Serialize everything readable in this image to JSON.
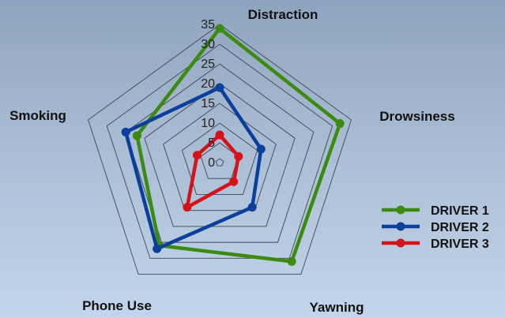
{
  "chart_data": {
    "type": "radar",
    "categories": [
      "Distraction",
      "Drowsiness",
      "Yawning",
      "Phone Use",
      "Smoking"
    ],
    "rlim": [
      0,
      35
    ],
    "ticks": [
      "0",
      "5",
      "10",
      "15",
      "20",
      "25",
      "30",
      "35"
    ],
    "tick_values": [
      0,
      5,
      10,
      15,
      20,
      25,
      30,
      35
    ],
    "grid": true,
    "legend_position": "right",
    "series": [
      {
        "name": "DRIVER 1",
        "color": "#3a8b10",
        "values": [
          34,
          32,
          31,
          26,
          22
        ]
      },
      {
        "name": "DRIVER 2",
        "color": "#0b3f9c",
        "values": [
          19,
          11,
          14,
          27,
          25
        ]
      },
      {
        "name": "DRIVER 3",
        "color": "#d4121a",
        "values": [
          7,
          5,
          6,
          14,
          6
        ]
      }
    ]
  }
}
